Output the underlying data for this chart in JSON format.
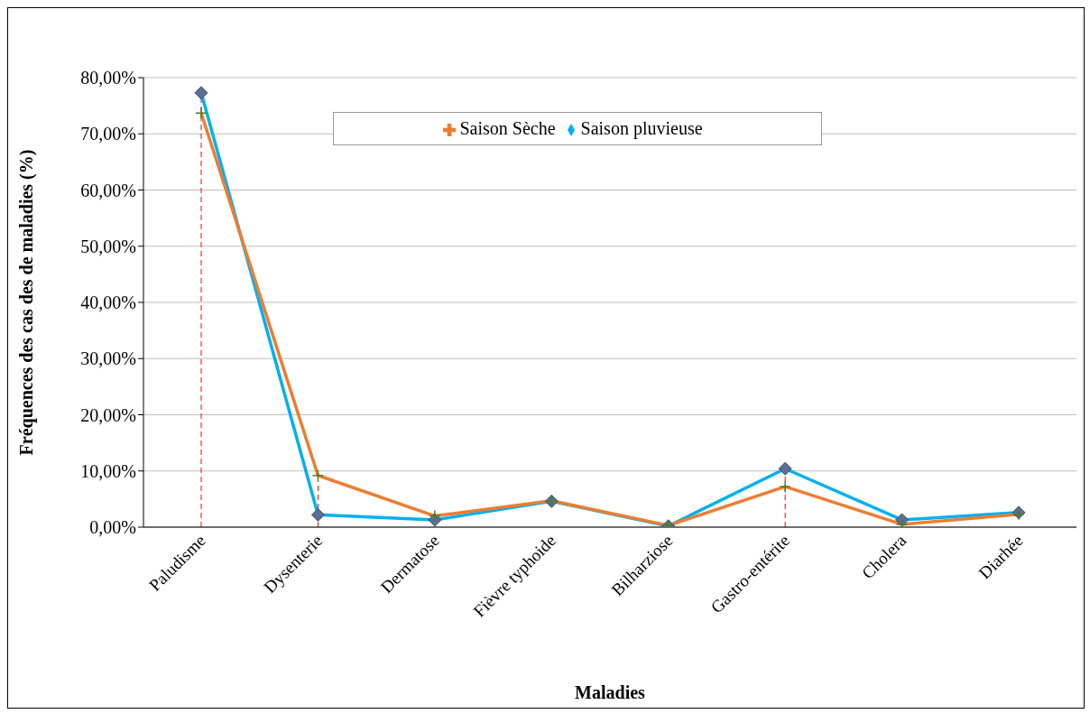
{
  "chart_data": {
    "type": "line",
    "xlabel": "Maladies",
    "ylabel": "Fréquences des cas des  de maladies (%)",
    "categories": [
      "Paludisme",
      "Dysenterie",
      "Dermatose",
      "Fièvre typhoide",
      "Bilharziose",
      "Gastro-entérite",
      "Cholera",
      "Diarhée"
    ],
    "series": [
      {
        "name": "Saison Sèche",
        "color": "#ed7d31",
        "marker": "cross",
        "values": [
          73.7,
          9.2,
          2.0,
          4.7,
          0.3,
          7.2,
          0.5,
          2.3
        ]
      },
      {
        "name": "Saison pluvieuse",
        "color": "#00b0f0",
        "marker": "diamond",
        "values": [
          77.3,
          2.2,
          1.3,
          4.6,
          0.2,
          10.4,
          1.3,
          2.6
        ]
      }
    ],
    "ylim": [
      0,
      80
    ],
    "yticks": [
      {
        "value": 0,
        "label": "0,00%"
      },
      {
        "value": 10,
        "label": "10,00%"
      },
      {
        "value": 20,
        "label": "20,00%"
      },
      {
        "value": 30,
        "label": "30,00%"
      },
      {
        "value": 40,
        "label": "40,00%"
      },
      {
        "value": 50,
        "label": "50,00%"
      },
      {
        "value": 60,
        "label": "60,00%"
      },
      {
        "value": 70,
        "label": "70,00%"
      },
      {
        "value": 80,
        "label": "80,00%"
      }
    ],
    "grid": "y",
    "legend": "top",
    "line_style": "solid",
    "ref_lines": [
      {
        "axis": "x",
        "value": "Paludisme",
        "color": "#ff0000",
        "line_style": "dashed"
      },
      {
        "axis": "x",
        "value": "Dysenterie",
        "color": "#ff0000",
        "line_style": "dashed"
      },
      {
        "axis": "x",
        "value": "Gastro-entérite",
        "color": "#ff0000",
        "line_style": "dashed"
      }
    ]
  }
}
